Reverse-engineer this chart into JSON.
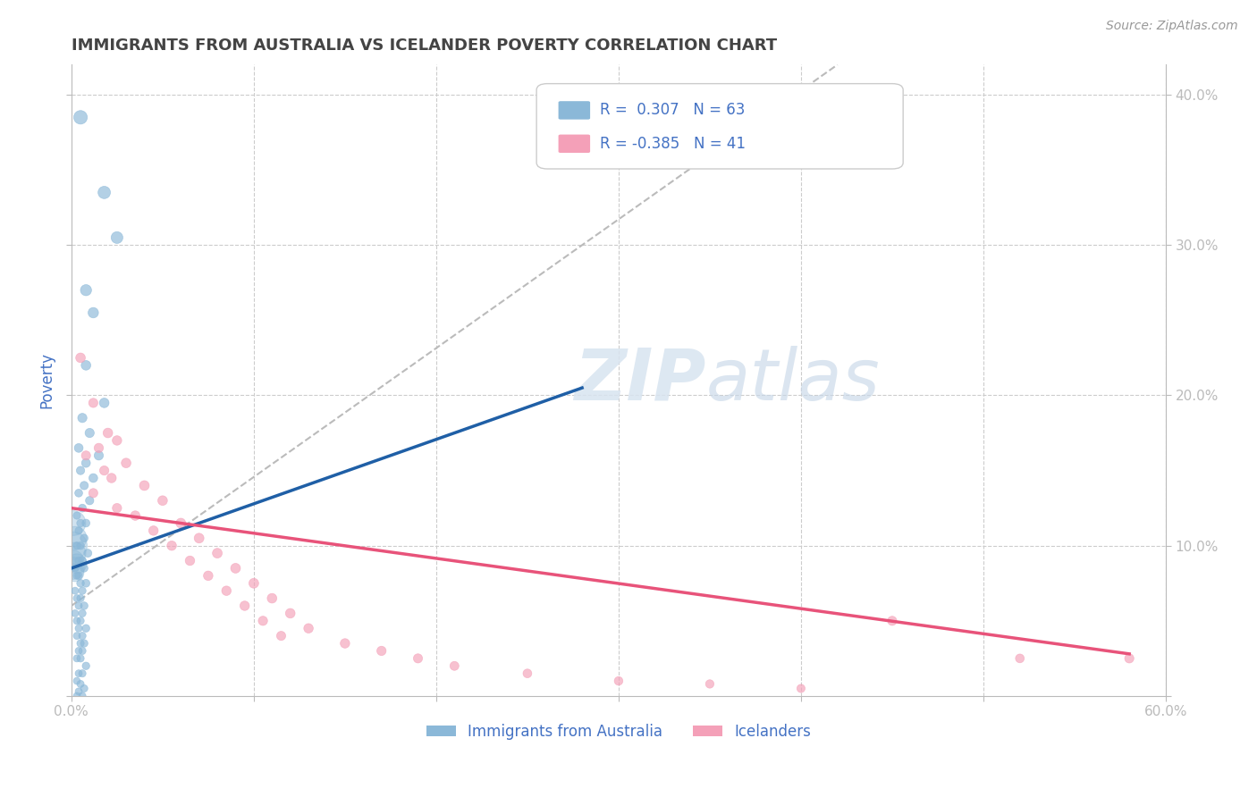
{
  "title": "IMMIGRANTS FROM AUSTRALIA VS ICELANDER POVERTY CORRELATION CHART",
  "source": "Source: ZipAtlas.com",
  "watermark": "ZIPatlas",
  "ylabel": "Poverty",
  "xlim": [
    0.0,
    0.6
  ],
  "ylim": [
    0.0,
    0.42
  ],
  "legend_r1": "R =  0.307",
  "legend_n1": "N = 63",
  "legend_r2": "R = -0.385",
  "legend_n2": "N = 41",
  "blue_color": "#8BB8D8",
  "pink_color": "#F4A0B8",
  "blue_line_color": "#1F5FA6",
  "pink_line_color": "#E8537A",
  "grid_color": "#CCCCCC",
  "title_color": "#444444",
  "axis_label_color": "#4472C4",
  "blue_scatter": [
    [
      0.005,
      0.385
    ],
    [
      0.018,
      0.335
    ],
    [
      0.008,
      0.27
    ],
    [
      0.025,
      0.305
    ],
    [
      0.012,
      0.255
    ],
    [
      0.008,
      0.22
    ],
    [
      0.018,
      0.195
    ],
    [
      0.006,
      0.185
    ],
    [
      0.01,
      0.175
    ],
    [
      0.004,
      0.165
    ],
    [
      0.015,
      0.16
    ],
    [
      0.008,
      0.155
    ],
    [
      0.005,
      0.15
    ],
    [
      0.012,
      0.145
    ],
    [
      0.007,
      0.14
    ],
    [
      0.004,
      0.135
    ],
    [
      0.01,
      0.13
    ],
    [
      0.006,
      0.125
    ],
    [
      0.003,
      0.12
    ],
    [
      0.008,
      0.115
    ],
    [
      0.005,
      0.115
    ],
    [
      0.004,
      0.11
    ],
    [
      0.007,
      0.105
    ],
    [
      0.003,
      0.1
    ],
    [
      0.005,
      0.1
    ],
    [
      0.009,
      0.095
    ],
    [
      0.004,
      0.09
    ],
    [
      0.006,
      0.09
    ],
    [
      0.002,
      0.085
    ],
    [
      0.007,
      0.085
    ],
    [
      0.004,
      0.08
    ],
    [
      0.003,
      0.08
    ],
    [
      0.005,
      0.075
    ],
    [
      0.008,
      0.075
    ],
    [
      0.002,
      0.07
    ],
    [
      0.006,
      0.07
    ],
    [
      0.003,
      0.065
    ],
    [
      0.005,
      0.065
    ],
    [
      0.004,
      0.06
    ],
    [
      0.007,
      0.06
    ],
    [
      0.002,
      0.055
    ],
    [
      0.006,
      0.055
    ],
    [
      0.003,
      0.05
    ],
    [
      0.005,
      0.05
    ],
    [
      0.008,
      0.045
    ],
    [
      0.004,
      0.045
    ],
    [
      0.006,
      0.04
    ],
    [
      0.003,
      0.04
    ],
    [
      0.005,
      0.035
    ],
    [
      0.007,
      0.035
    ],
    [
      0.004,
      0.03
    ],
    [
      0.006,
      0.03
    ],
    [
      0.003,
      0.025
    ],
    [
      0.005,
      0.025
    ],
    [
      0.008,
      0.02
    ],
    [
      0.004,
      0.015
    ],
    [
      0.006,
      0.015
    ],
    [
      0.003,
      0.01
    ],
    [
      0.005,
      0.008
    ],
    [
      0.007,
      0.005
    ],
    [
      0.004,
      0.003
    ],
    [
      0.006,
      0.0
    ],
    [
      0.003,
      0.0
    ]
  ],
  "blue_sizes": [
    120,
    100,
    80,
    90,
    70,
    60,
    60,
    55,
    55,
    50,
    55,
    50,
    45,
    50,
    45,
    40,
    45,
    40,
    35,
    40,
    38,
    35,
    40,
    35,
    38,
    42,
    38,
    40,
    35,
    38,
    36,
    34,
    38,
    40,
    33,
    36,
    34,
    36,
    34,
    38,
    32,
    36,
    34,
    36,
    38,
    34,
    36,
    33,
    35,
    37,
    33,
    35,
    33,
    35,
    37,
    33,
    35,
    32,
    34,
    35,
    33,
    34,
    32
  ],
  "blue_large": [
    [
      0.001,
      0.115
    ],
    [
      0.002,
      0.105
    ],
    [
      0.001,
      0.1
    ],
    [
      0.002,
      0.095
    ],
    [
      0.001,
      0.09
    ],
    [
      0.003,
      0.088
    ],
    [
      0.001,
      0.085
    ],
    [
      0.002,
      0.082
    ]
  ],
  "blue_large_sizes": [
    400,
    350,
    500,
    300,
    280,
    250,
    320,
    200
  ],
  "pink_scatter": [
    [
      0.005,
      0.225
    ],
    [
      0.012,
      0.195
    ],
    [
      0.02,
      0.175
    ],
    [
      0.025,
      0.17
    ],
    [
      0.015,
      0.165
    ],
    [
      0.008,
      0.16
    ],
    [
      0.03,
      0.155
    ],
    [
      0.018,
      0.15
    ],
    [
      0.022,
      0.145
    ],
    [
      0.04,
      0.14
    ],
    [
      0.012,
      0.135
    ],
    [
      0.05,
      0.13
    ],
    [
      0.025,
      0.125
    ],
    [
      0.035,
      0.12
    ],
    [
      0.06,
      0.115
    ],
    [
      0.045,
      0.11
    ],
    [
      0.07,
      0.105
    ],
    [
      0.055,
      0.1
    ],
    [
      0.08,
      0.095
    ],
    [
      0.065,
      0.09
    ],
    [
      0.09,
      0.085
    ],
    [
      0.075,
      0.08
    ],
    [
      0.1,
      0.075
    ],
    [
      0.085,
      0.07
    ],
    [
      0.11,
      0.065
    ],
    [
      0.095,
      0.06
    ],
    [
      0.12,
      0.055
    ],
    [
      0.105,
      0.05
    ],
    [
      0.13,
      0.045
    ],
    [
      0.115,
      0.04
    ],
    [
      0.15,
      0.035
    ],
    [
      0.17,
      0.03
    ],
    [
      0.19,
      0.025
    ],
    [
      0.21,
      0.02
    ],
    [
      0.25,
      0.015
    ],
    [
      0.3,
      0.01
    ],
    [
      0.35,
      0.008
    ],
    [
      0.4,
      0.005
    ],
    [
      0.45,
      0.05
    ],
    [
      0.52,
      0.025
    ],
    [
      0.58,
      0.025
    ]
  ],
  "pink_sizes": [
    60,
    55,
    60,
    58,
    56,
    54,
    60,
    56,
    58,
    62,
    54,
    60,
    56,
    58,
    62,
    58,
    62,
    58,
    62,
    58,
    62,
    58,
    62,
    58,
    60,
    58,
    60,
    56,
    58,
    54,
    58,
    56,
    54,
    52,
    50,
    48,
    46,
    44,
    55,
    50,
    55
  ],
  "blue_trend_x": [
    0.0,
    0.28
  ],
  "blue_trend_y": [
    0.085,
    0.205
  ],
  "pink_trend_x": [
    0.0,
    0.58
  ],
  "pink_trend_y": [
    0.125,
    0.028
  ],
  "dashed_trend_x": [
    0.0,
    0.42
  ],
  "dashed_trend_y": [
    0.06,
    0.42
  ]
}
